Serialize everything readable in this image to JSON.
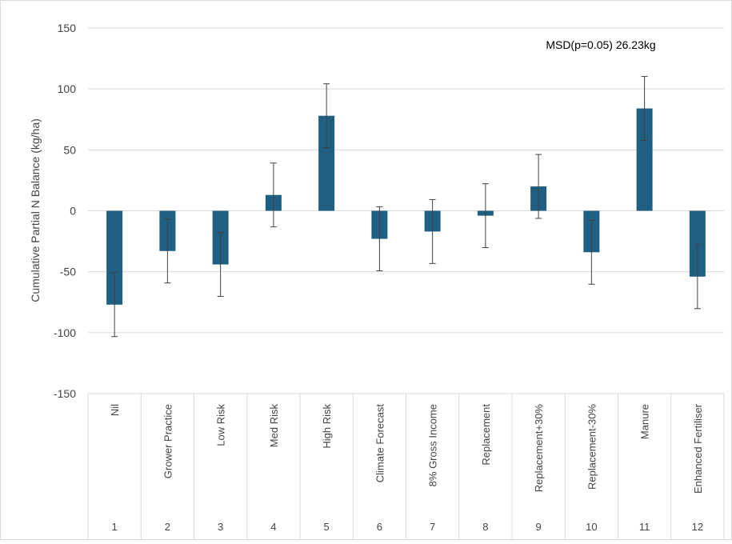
{
  "chart_data": {
    "type": "bar",
    "title": "",
    "xlabel": "",
    "ylabel": "Cumulative Partial N Balance (kg/ha)",
    "ylim": [
      -150,
      150
    ],
    "yticks": [
      150,
      100,
      50,
      0,
      -50,
      -100,
      -150
    ],
    "ytick_labels": [
      "150",
      "100",
      "50",
      "0",
      "-50",
      "-100",
      "-150"
    ],
    "categories": [
      "Nil",
      "Grower Practice",
      "Low Risk",
      "Med Risk",
      "High Risk",
      "Climate Forecast",
      "8% Gross Income",
      "Replacement",
      "Replacement+30%",
      "Replacement-30%",
      "Manure",
      "Enhanced Fertiliser"
    ],
    "numbers": [
      "1",
      "2",
      "3",
      "4",
      "5",
      "6",
      "7",
      "8",
      "9",
      "10",
      "11",
      "12"
    ],
    "values": [
      -77,
      -33,
      -44,
      13,
      78,
      -23,
      -17,
      -4,
      20,
      -34,
      84,
      -54
    ],
    "error": 26.23,
    "annotation": "MSD(p=0.05) 26.23kg",
    "grid": true,
    "bar_color": "#1f5f82",
    "error_bar_color": "#404040"
  }
}
